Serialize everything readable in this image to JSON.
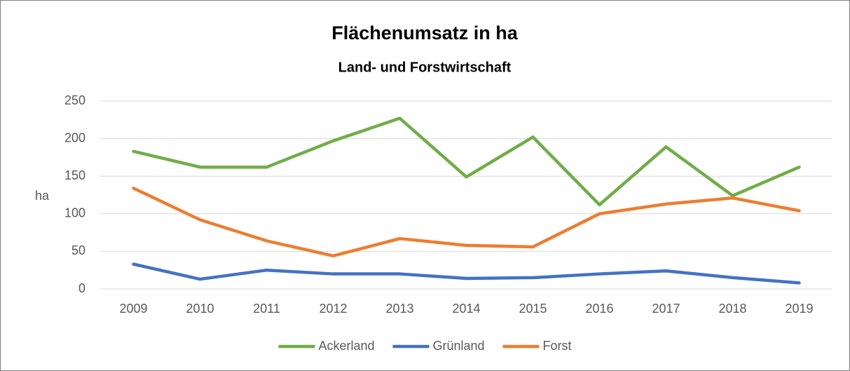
{
  "chart_data": {
    "type": "line",
    "title": "Flächenumsatz in ha",
    "subtitle": "Land- und Forstwirtschaft",
    "y_label": "ha",
    "categories": [
      "2009",
      "2010",
      "2011",
      "2012",
      "2013",
      "2014",
      "2015",
      "2016",
      "2017",
      "2018",
      "2019"
    ],
    "series": [
      {
        "name": "Ackerland",
        "color": "#70ad47",
        "values": [
          183,
          162,
          162,
          197,
          227,
          149,
          202,
          112,
          189,
          124,
          162
        ]
      },
      {
        "name": "Grünland",
        "color": "#4472c4",
        "values": [
          33,
          13,
          25,
          20,
          20,
          14,
          15,
          20,
          24,
          15,
          8
        ]
      },
      {
        "name": "Forst",
        "color": "#ed7d31",
        "values": [
          134,
          92,
          64,
          44,
          67,
          58,
          56,
          100,
          113,
          121,
          104
        ]
      }
    ],
    "ylim": [
      0,
      250
    ],
    "yticks": [
      0,
      50,
      100,
      150,
      200,
      250
    ],
    "grid": true,
    "legend": "bottom"
  }
}
